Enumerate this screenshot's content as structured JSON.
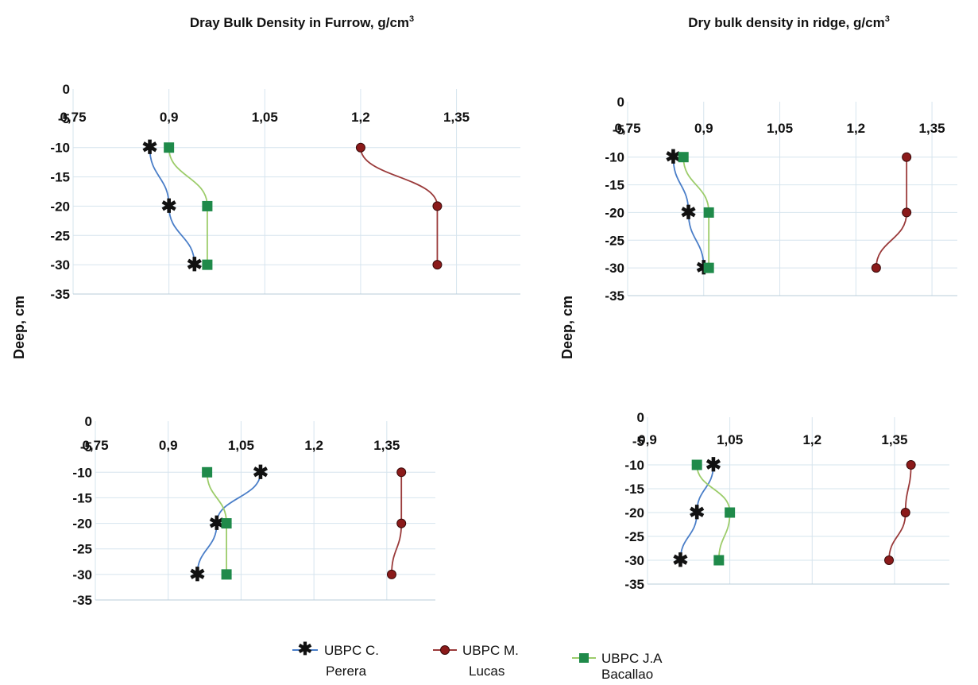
{
  "titles": {
    "left": "Dray Bulk Density in Furrow, g/cm",
    "right": "Dry bulk density in ridge, g/cm",
    "superscript": "3"
  },
  "ylabel": "Deep, cm",
  "legend": [
    {
      "label_line1": "UBPC C.",
      "label_line2": "Perera"
    },
    {
      "label_line1": "UBPC M.",
      "label_line2": "Lucas"
    },
    {
      "label_line1": "UBPC J.A",
      "label_line2": "Bacallao"
    }
  ],
  "colors": {
    "perera": "#2b3f8f",
    "lucas": "#8b1a1a",
    "bacallao": "#1f8a4a",
    "perera_line": "#4a7ec8",
    "lucas_line": "#9a3a3a",
    "bacallao_line": "#9ccc6a",
    "grid": "#d6e4ee"
  },
  "chart_data": [
    {
      "type": "line",
      "panel": "top-left",
      "title": "Dray Bulk Density in Furrow, g/cm3",
      "x_ticks": [
        "0,75",
        "0,9",
        "1,05",
        "1,2",
        "1,35"
      ],
      "y_ticks": [
        "0",
        "-5",
        "-10",
        "-15",
        "-20",
        "-25",
        "-30",
        "-35"
      ],
      "xlim": [
        0.75,
        1.45
      ],
      "ylim": [
        -35,
        0
      ],
      "series": [
        {
          "name": "UBPC C. Perera",
          "x": [
            0.87,
            0.9,
            0.94
          ],
          "y": [
            -10,
            -20,
            -30
          ]
        },
        {
          "name": "UBPC M. Lucas",
          "x": [
            1.2,
            1.32,
            1.32
          ],
          "y": [
            -10,
            -20,
            -30
          ]
        },
        {
          "name": "UBPC J.A Bacallao",
          "x": [
            0.9,
            0.96,
            0.96
          ],
          "y": [
            -10,
            -20,
            -30
          ]
        }
      ]
    },
    {
      "type": "line",
      "panel": "top-right",
      "title": "Dry bulk density in ridge, g/cm3",
      "x_ticks": [
        "0,75",
        "0,9",
        "1,05",
        "1,2",
        "1,35"
      ],
      "y_ticks": [
        "0",
        "-5",
        "-10",
        "-15",
        "-20",
        "-25",
        "-30",
        "-35"
      ],
      "xlim": [
        0.75,
        1.4
      ],
      "ylim": [
        -35,
        0
      ],
      "series": [
        {
          "name": "UBPC C. Perera",
          "x": [
            0.84,
            0.87,
            0.9
          ],
          "y": [
            -10,
            -20,
            -30
          ]
        },
        {
          "name": "UBPC M. Lucas",
          "x": [
            1.3,
            1.3,
            1.24
          ],
          "y": [
            -10,
            -20,
            -30
          ]
        },
        {
          "name": "UBPC J.A Bacallao",
          "x": [
            0.86,
            0.91,
            0.91
          ],
          "y": [
            -10,
            -20,
            -30
          ]
        }
      ]
    },
    {
      "type": "line",
      "panel": "bottom-left",
      "title": "",
      "x_ticks": [
        "0,75",
        "0,9",
        "1,05",
        "1,2",
        "1,35"
      ],
      "y_ticks": [
        "0",
        "-5",
        "-10",
        "-15",
        "-20",
        "-25",
        "-30",
        "-35"
      ],
      "xlim": [
        0.75,
        1.45
      ],
      "ylim": [
        -35,
        0
      ],
      "series": [
        {
          "name": "UBPC C. Perera",
          "x": [
            1.09,
            1.0,
            0.96
          ],
          "y": [
            -10,
            -20,
            -30
          ]
        },
        {
          "name": "UBPC M. Lucas",
          "x": [
            1.38,
            1.38,
            1.36
          ],
          "y": [
            -10,
            -20,
            -30
          ]
        },
        {
          "name": "UBPC J.A Bacallao",
          "x": [
            0.98,
            1.02,
            1.02
          ],
          "y": [
            -10,
            -20,
            -30
          ]
        }
      ]
    },
    {
      "type": "line",
      "panel": "bottom-right",
      "title": "",
      "x_ticks": [
        "0,9",
        "1,05",
        "1,2",
        "1,35"
      ],
      "y_ticks": [
        "0",
        "-5",
        "-10",
        "-15",
        "-20",
        "-25",
        "-30",
        "-35"
      ],
      "xlim": [
        0.9,
        1.45
      ],
      "ylim": [
        -35,
        0
      ],
      "series": [
        {
          "name": "UBPC C. Perera",
          "x": [
            1.02,
            0.99,
            0.96
          ],
          "y": [
            -10,
            -20,
            -30
          ]
        },
        {
          "name": "UBPC M. Lucas",
          "x": [
            1.38,
            1.37,
            1.34
          ],
          "y": [
            -10,
            -20,
            -30
          ]
        },
        {
          "name": "UBPC J.A Bacallao",
          "x": [
            0.99,
            1.05,
            1.03
          ],
          "y": [
            -10,
            -20,
            -30
          ]
        }
      ]
    }
  ]
}
